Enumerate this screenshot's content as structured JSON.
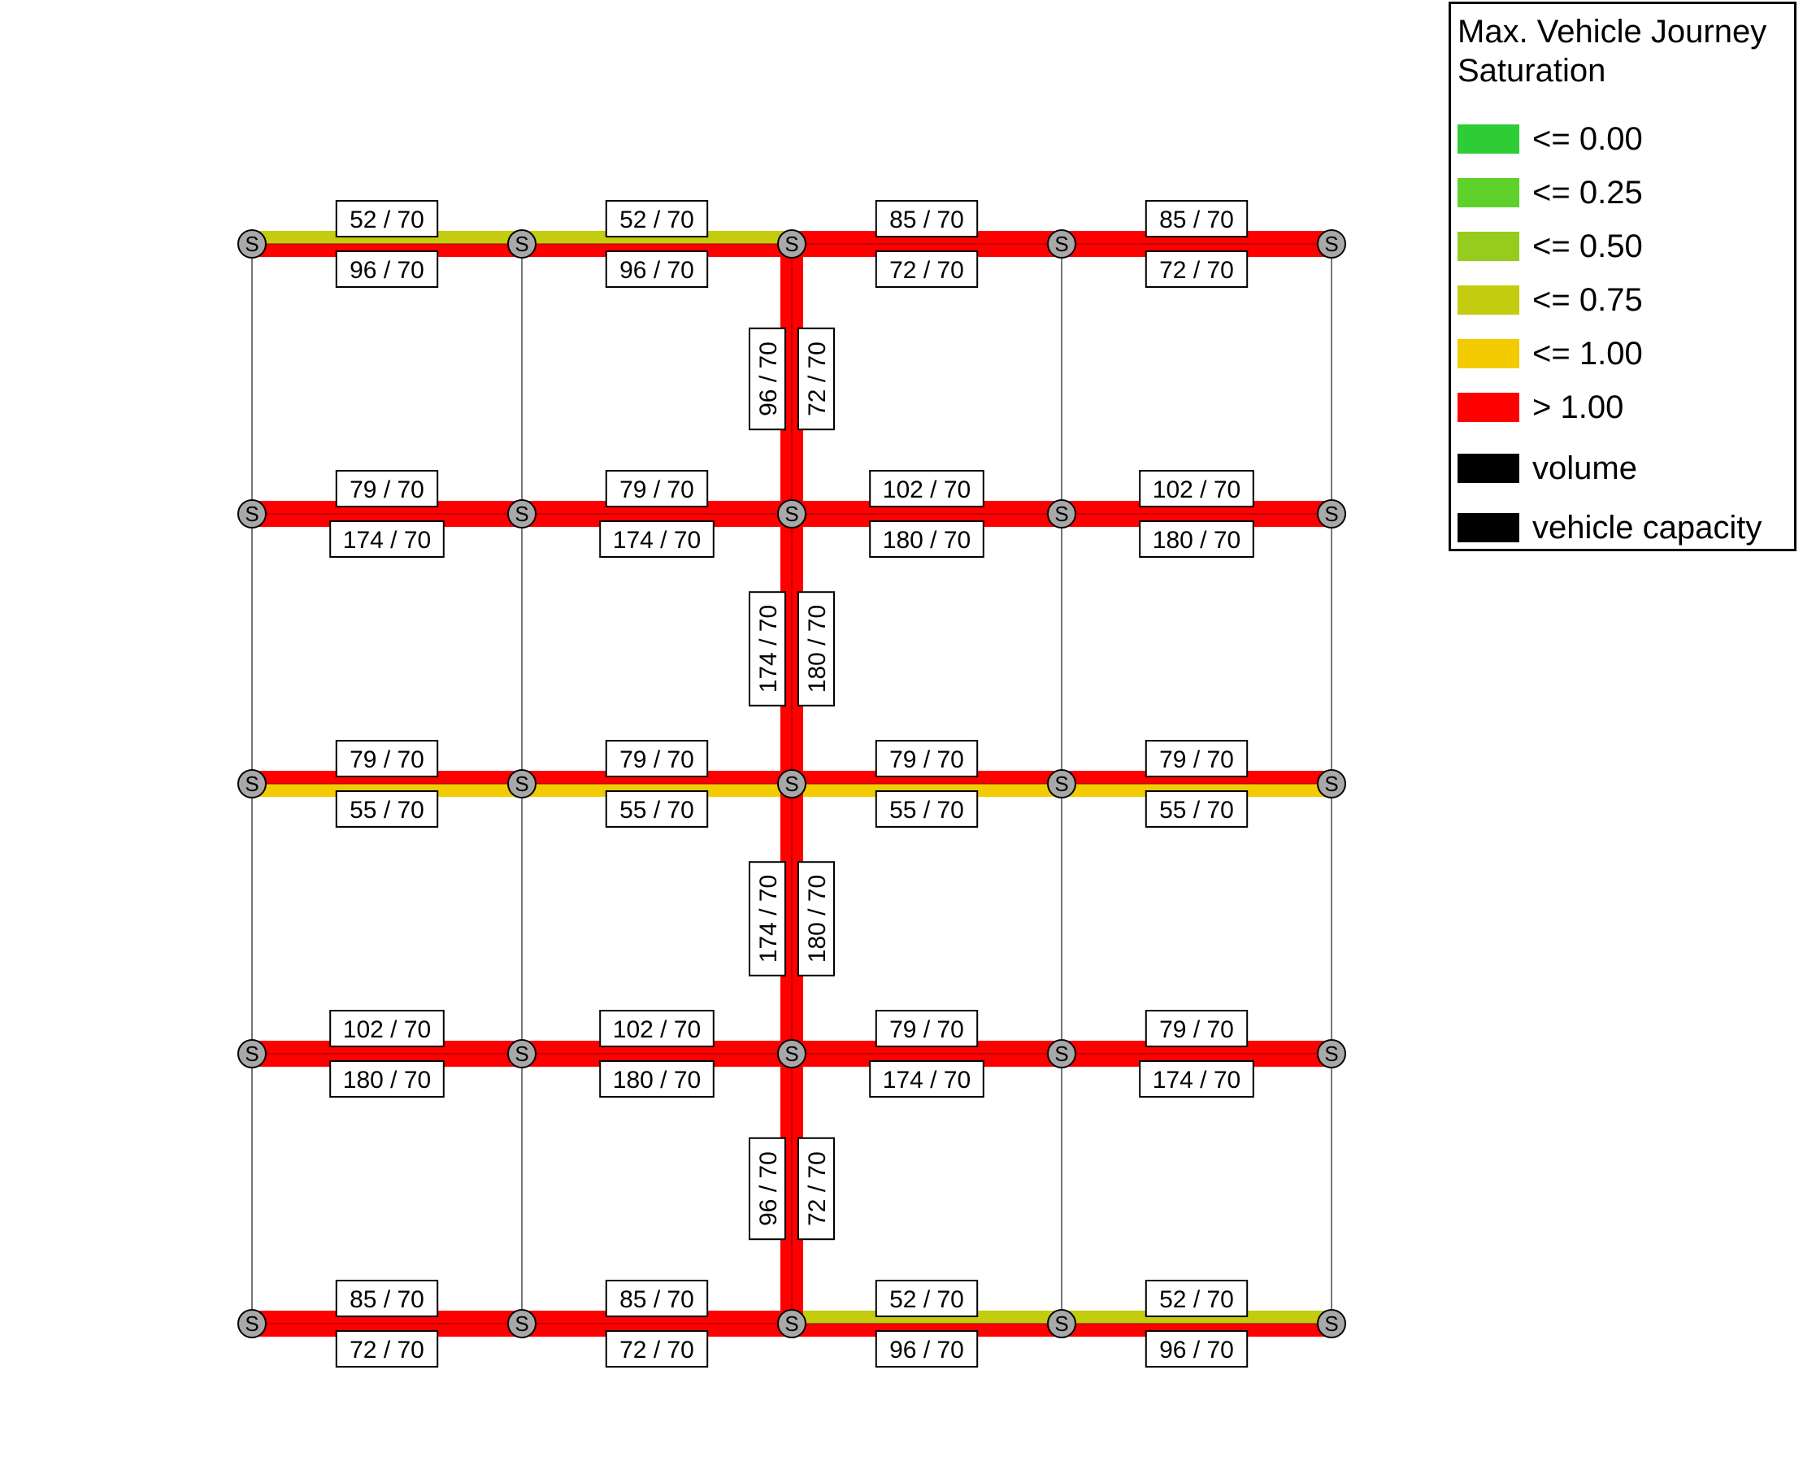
{
  "colors": {
    "sat_0": "#2ecc35",
    "sat_025": "#5ed12b",
    "sat_050": "#95cc1e",
    "sat_075": "#c3cc0e",
    "sat_100": "#f2cc00",
    "sat_over": "#ff0000",
    "node_fill": "#a8a8a8",
    "link_line": "#777777"
  },
  "legend": {
    "title_line1": "Max. Vehicle Journey",
    "title_line2": "Saturation",
    "items": [
      {
        "label": "<= 0.00",
        "color": "#2ecc35"
      },
      {
        "label": "<= 0.25",
        "color": "#5ed12b"
      },
      {
        "label": "<= 0.50",
        "color": "#95cc1e"
      },
      {
        "label": "<= 0.75",
        "color": "#c3cc0e"
      },
      {
        "label": "<= 1.00",
        "color": "#f2cc00"
      },
      {
        "label": "> 1.00",
        "color": "#ff0000"
      },
      {
        "label": "volume",
        "color": "#000000"
      },
      {
        "label": "vehicle capacity",
        "color": "#000000"
      }
    ]
  },
  "node_label": "S",
  "grid": {
    "cols": 5,
    "rows": 5
  },
  "horizontal_links": [
    {
      "row": 0,
      "col": 0,
      "upper": "52 / 70",
      "lower": "96 / 70",
      "upper_color": "#c3cc0e",
      "lower_color": "#ff0000"
    },
    {
      "row": 0,
      "col": 1,
      "upper": "52 / 70",
      "lower": "96 / 70",
      "upper_color": "#c3cc0e",
      "lower_color": "#ff0000"
    },
    {
      "row": 0,
      "col": 2,
      "upper": "85 / 70",
      "lower": "72 / 70",
      "upper_color": "#ff0000",
      "lower_color": "#ff0000"
    },
    {
      "row": 0,
      "col": 3,
      "upper": "85 / 70",
      "lower": "72 / 70",
      "upper_color": "#ff0000",
      "lower_color": "#ff0000"
    },
    {
      "row": 1,
      "col": 0,
      "upper": "79 / 70",
      "lower": "174 / 70",
      "upper_color": "#ff0000",
      "lower_color": "#ff0000"
    },
    {
      "row": 1,
      "col": 1,
      "upper": "79 / 70",
      "lower": "174 / 70",
      "upper_color": "#ff0000",
      "lower_color": "#ff0000"
    },
    {
      "row": 1,
      "col": 2,
      "upper": "102 / 70",
      "lower": "180 / 70",
      "upper_color": "#ff0000",
      "lower_color": "#ff0000"
    },
    {
      "row": 1,
      "col": 3,
      "upper": "102 / 70",
      "lower": "180 / 70",
      "upper_color": "#ff0000",
      "lower_color": "#ff0000"
    },
    {
      "row": 2,
      "col": 0,
      "upper": "79 / 70",
      "lower": "55 / 70",
      "upper_color": "#ff0000",
      "lower_color": "#f2cc00"
    },
    {
      "row": 2,
      "col": 1,
      "upper": "79 / 70",
      "lower": "55 / 70",
      "upper_color": "#ff0000",
      "lower_color": "#f2cc00"
    },
    {
      "row": 2,
      "col": 2,
      "upper": "79 / 70",
      "lower": "55 / 70",
      "upper_color": "#ff0000",
      "lower_color": "#f2cc00"
    },
    {
      "row": 2,
      "col": 3,
      "upper": "79 / 70",
      "lower": "55 / 70",
      "upper_color": "#ff0000",
      "lower_color": "#f2cc00"
    },
    {
      "row": 3,
      "col": 0,
      "upper": "102 / 70",
      "lower": "180 / 70",
      "upper_color": "#ff0000",
      "lower_color": "#ff0000"
    },
    {
      "row": 3,
      "col": 1,
      "upper": "102 / 70",
      "lower": "180 / 70",
      "upper_color": "#ff0000",
      "lower_color": "#ff0000"
    },
    {
      "row": 3,
      "col": 2,
      "upper": "79 / 70",
      "lower": "174 / 70",
      "upper_color": "#ff0000",
      "lower_color": "#ff0000"
    },
    {
      "row": 3,
      "col": 3,
      "upper": "79 / 70",
      "lower": "174 / 70",
      "upper_color": "#ff0000",
      "lower_color": "#ff0000"
    },
    {
      "row": 4,
      "col": 0,
      "upper": "85 / 70",
      "lower": "72 / 70",
      "upper_color": "#ff0000",
      "lower_color": "#ff0000"
    },
    {
      "row": 4,
      "col": 1,
      "upper": "85 / 70",
      "lower": "72 / 70",
      "upper_color": "#ff0000",
      "lower_color": "#ff0000"
    },
    {
      "row": 4,
      "col": 2,
      "upper": "52 / 70",
      "lower": "96 / 70",
      "upper_color": "#c3cc0e",
      "lower_color": "#ff0000"
    },
    {
      "row": 4,
      "col": 3,
      "upper": "52 / 70",
      "lower": "96 / 70",
      "upper_color": "#c3cc0e",
      "lower_color": "#ff0000"
    }
  ],
  "vertical_links": [
    {
      "col": 2,
      "row": 0,
      "left": "96 / 70",
      "right": "72 / 70",
      "left_color": "#ff0000",
      "right_color": "#ff0000"
    },
    {
      "col": 2,
      "row": 1,
      "left": "174 / 70",
      "right": "180 / 70",
      "left_color": "#ff0000",
      "right_color": "#ff0000"
    },
    {
      "col": 2,
      "row": 2,
      "left": "174 / 70",
      "right": "180 / 70",
      "left_color": "#ff0000",
      "right_color": "#ff0000"
    },
    {
      "col": 2,
      "row": 3,
      "left": "96 / 70",
      "right": "72 / 70",
      "left_color": "#ff0000",
      "right_color": "#ff0000"
    }
  ]
}
